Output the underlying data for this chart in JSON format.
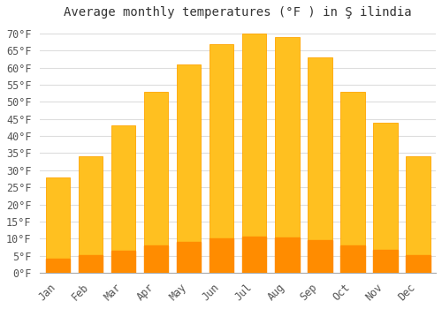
{
  "title": "Average monthly temperatures (°F ) in Ş ilindia",
  "months": [
    "Jan",
    "Feb",
    "Mar",
    "Apr",
    "May",
    "Jun",
    "Jul",
    "Aug",
    "Sep",
    "Oct",
    "Nov",
    "Dec"
  ],
  "values": [
    28,
    34,
    43,
    53,
    61,
    67,
    70,
    69,
    63,
    53,
    44,
    34
  ],
  "bar_color_face": "#FFC020",
  "bar_color_edge": "#FFA500",
  "bar_color_bottom": "#FF8C00",
  "ylim": [
    0,
    73
  ],
  "yticks": [
    0,
    5,
    10,
    15,
    20,
    25,
    30,
    35,
    40,
    45,
    50,
    55,
    60,
    65,
    70
  ],
  "ytick_labels": [
    "0°F",
    "5°F",
    "10°F",
    "15°F",
    "20°F",
    "25°F",
    "30°F",
    "35°F",
    "40°F",
    "45°F",
    "50°F",
    "55°F",
    "60°F",
    "65°F",
    "70°F"
  ],
  "grid_color": "#dddddd",
  "bg_color": "#ffffff",
  "title_fontsize": 10,
  "tick_fontsize": 8.5,
  "font_family": "monospace"
}
